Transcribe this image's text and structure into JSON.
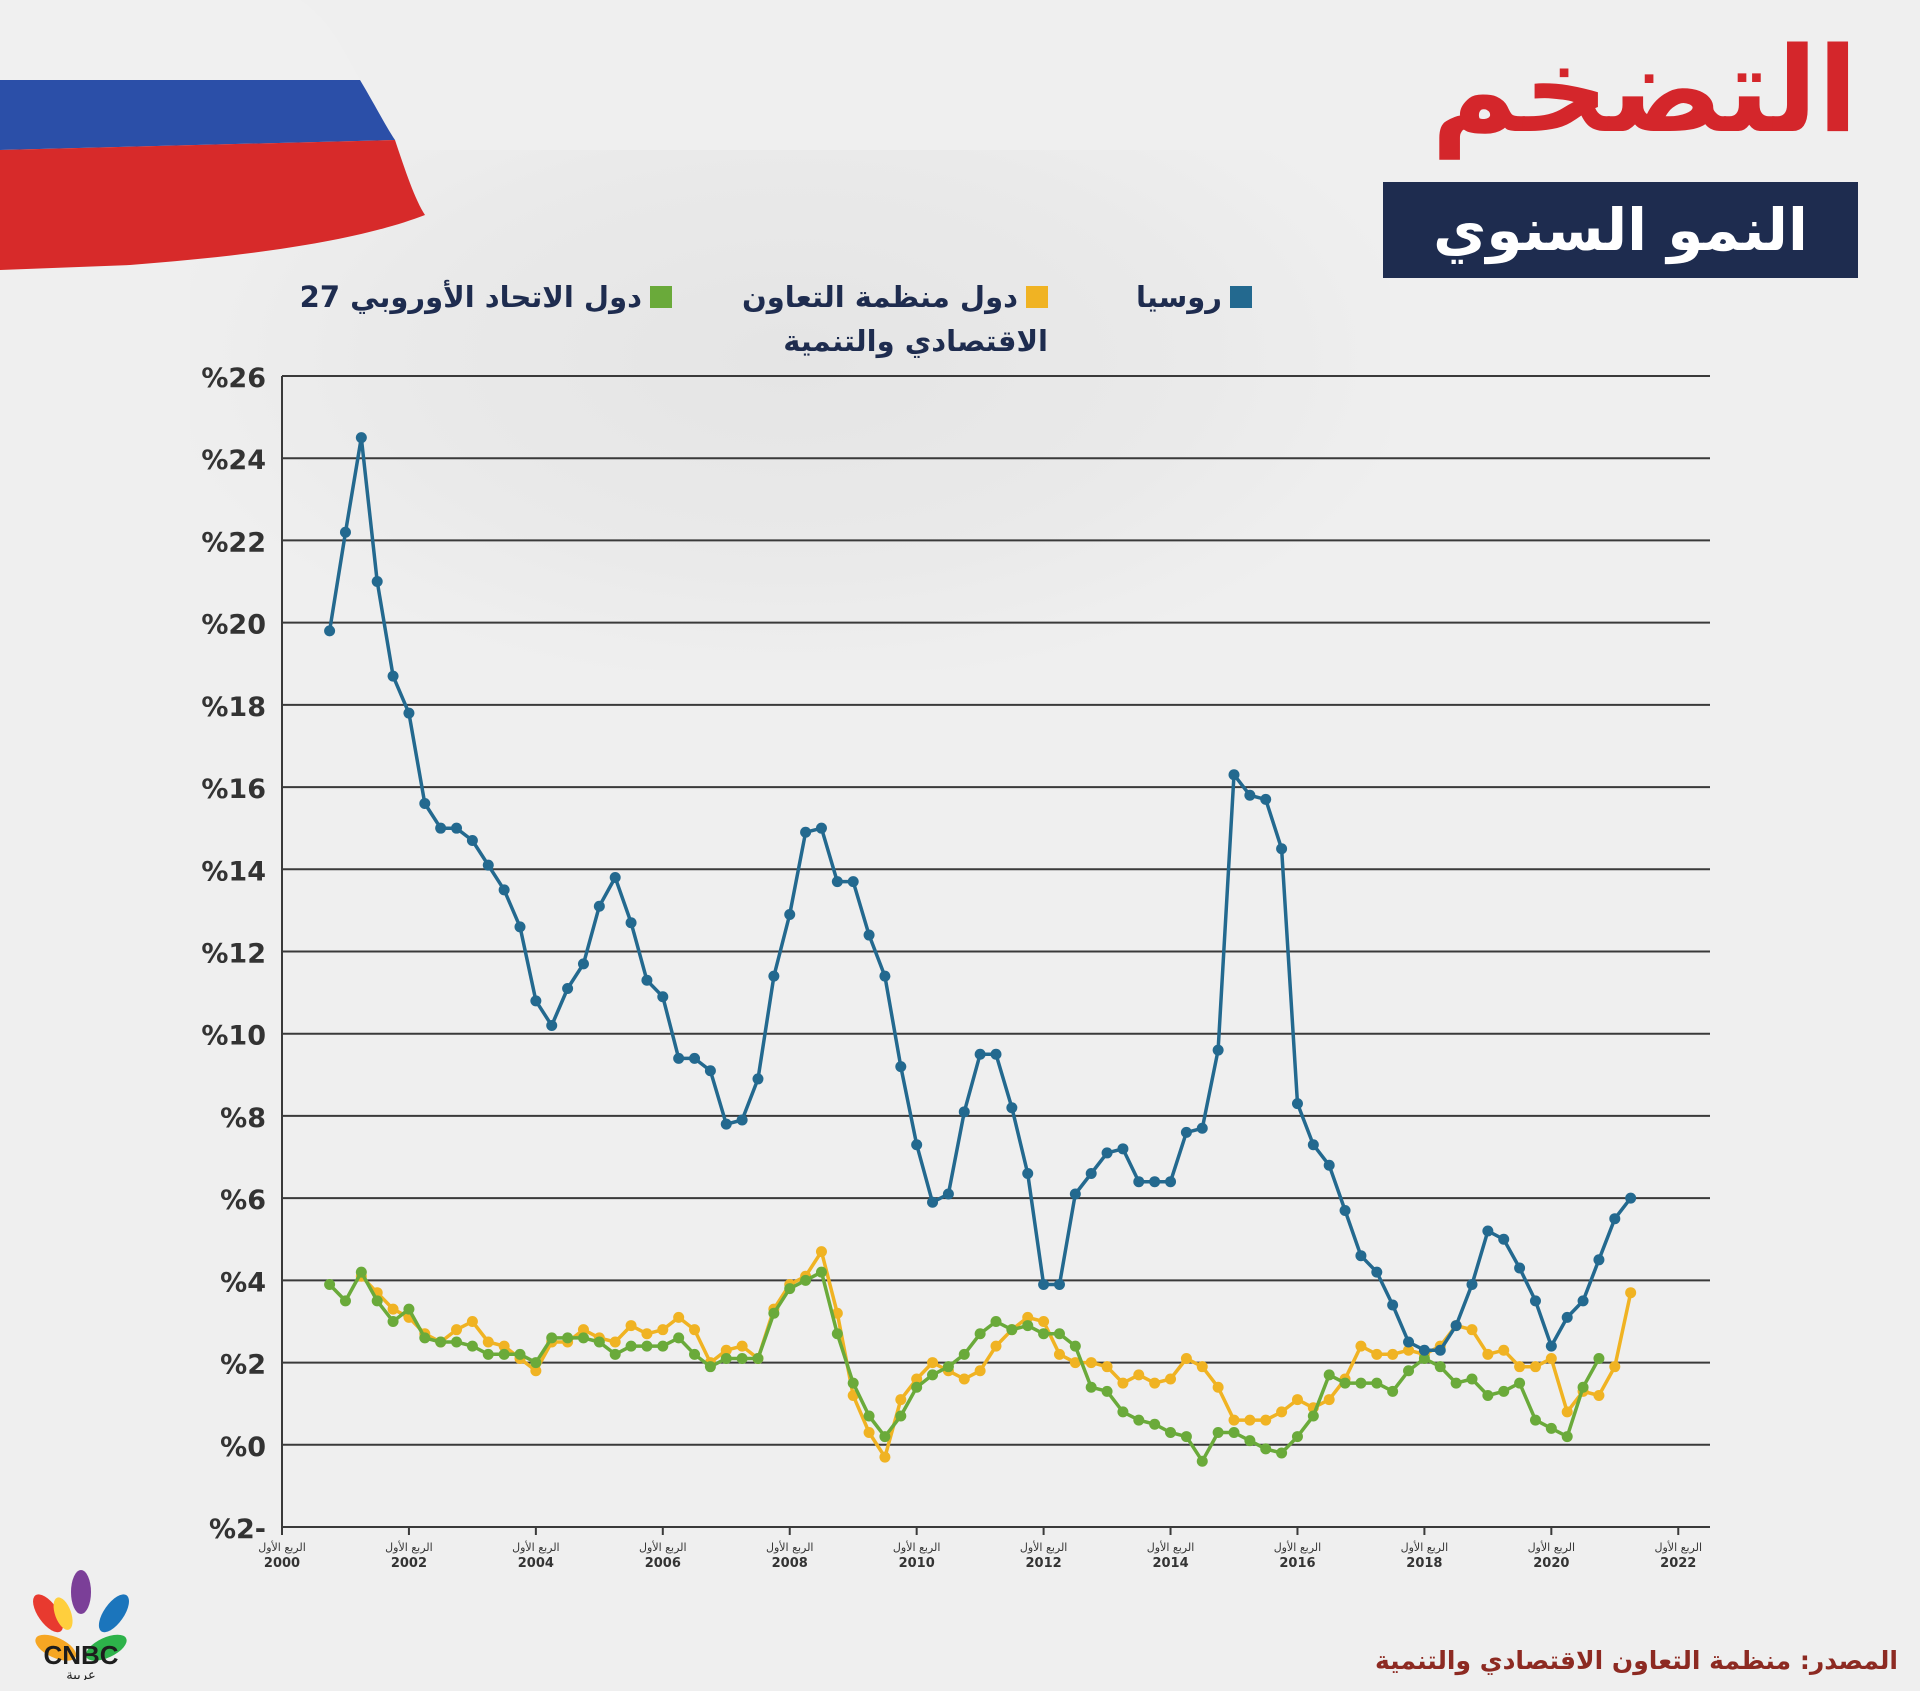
{
  "title": "التضخم",
  "subtitle": "النمو السنوي",
  "legend": [
    {
      "label": "روسيا",
      "color": "#23698f"
    },
    {
      "label": "دول منظمة التعاون الاقتصادي والتنمية",
      "color": "#f0b323"
    },
    {
      "label": "دول الاتحاد الأوروبي 27",
      "color": "#6aaa3a"
    }
  ],
  "source": "المصدر: منظمة التعاون الاقتصادي والتنمية",
  "logo": {
    "text": "CNBC",
    "subtext": "عربية"
  },
  "chart_data": {
    "type": "line",
    "ylim": [
      -2,
      26
    ],
    "yticks": [
      26,
      24,
      22,
      20,
      18,
      16,
      14,
      12,
      10,
      8,
      6,
      4,
      2,
      0,
      -2
    ],
    "ytick_labels": [
      "%26",
      "%24",
      "%22",
      "%20",
      "%18",
      "%16",
      "%14",
      "%12",
      "%10",
      "%8",
      "%6",
      "%4",
      "%2",
      "%0",
      "%2-"
    ],
    "xlim": [
      2000,
      2022.5
    ],
    "xtick_values": [
      2000,
      2002,
      2004,
      2006,
      2008,
      2010,
      2012,
      2014,
      2016,
      2018,
      2020,
      2022
    ],
    "xtick_labels": [
      {
        "quarter": "الربع الأول",
        "year": "2000"
      },
      {
        "quarter": "الربع الأول",
        "year": "2002"
      },
      {
        "quarter": "الربع الأول",
        "year": "2004"
      },
      {
        "quarter": "الربع الأول",
        "year": "2006"
      },
      {
        "quarter": "الربع الأول",
        "year": "2008"
      },
      {
        "quarter": "الربع الأول",
        "year": "2010"
      },
      {
        "quarter": "الربع الأول",
        "year": "2012"
      },
      {
        "quarter": "الربع الأول",
        "year": "2014"
      },
      {
        "quarter": "الربع الأول",
        "year": "2016"
      },
      {
        "quarter": "الربع الأول",
        "year": "2018"
      },
      {
        "quarter": "الربع الأول",
        "year": "2020"
      },
      {
        "quarter": "الربع الأول",
        "year": "2022"
      }
    ],
    "grid": true,
    "x": [
      2000.75,
      2001,
      2001.25,
      2001.5,
      2001.75,
      2002,
      2002.25,
      2002.5,
      2002.75,
      2003,
      2003.25,
      2003.5,
      2003.75,
      2004,
      2004.25,
      2004.5,
      2004.75,
      2005,
      2005.25,
      2005.5,
      2005.75,
      2006,
      2006.25,
      2006.5,
      2006.75,
      2007,
      2007.25,
      2007.5,
      2007.75,
      2008,
      2008.25,
      2008.5,
      2008.75,
      2009,
      2009.25,
      2009.5,
      2009.75,
      2010,
      2010.25,
      2010.5,
      2010.75,
      2011,
      2011.25,
      2011.5,
      2011.75,
      2012,
      2012.25,
      2012.5,
      2012.75,
      2013,
      2013.25,
      2013.5,
      2013.75,
      2014,
      2014.25,
      2014.5,
      2014.75,
      2015,
      2015.25,
      2015.5,
      2015.75,
      2016,
      2016.25,
      2016.5,
      2016.75,
      2017,
      2017.25,
      2017.5,
      2017.75,
      2018,
      2018.25,
      2018.5,
      2018.75,
      2019,
      2019.25,
      2019.5,
      2019.75,
      2020,
      2020.25,
      2020.5,
      2020.75,
      2021,
      2021.25
    ],
    "series": [
      {
        "name": "روسيا",
        "color": "#23698f",
        "values": [
          19.8,
          22.2,
          24.5,
          21.0,
          18.7,
          17.8,
          15.6,
          15.0,
          15.0,
          14.7,
          14.1,
          13.5,
          12.6,
          10.8,
          10.2,
          11.1,
          11.7,
          13.1,
          13.8,
          12.7,
          11.3,
          10.9,
          9.4,
          9.4,
          9.1,
          7.8,
          7.9,
          8.9,
          11.4,
          12.9,
          14.9,
          15.0,
          13.7,
          13.7,
          12.4,
          11.4,
          9.2,
          7.3,
          5.9,
          6.1,
          8.1,
          9.5,
          9.5,
          8.2,
          6.6,
          3.9,
          3.9,
          6.1,
          6.6,
          7.1,
          7.2,
          6.4,
          6.4,
          6.4,
          7.6,
          7.7,
          9.6,
          16.3,
          15.8,
          15.7,
          14.5,
          8.3,
          7.3,
          6.8,
          5.7,
          4.6,
          4.2,
          3.4,
          2.5,
          2.3,
          2.3,
          2.9,
          3.9,
          5.2,
          5.0,
          4.3,
          3.5,
          2.4,
          3.1,
          3.5,
          4.5,
          5.5,
          6.0
        ]
      },
      {
        "name": "دول منظمة التعاون الاقتصادي والتنمية",
        "color": "#f0b323",
        "values": [
          null,
          null,
          4.1,
          3.7,
          3.3,
          3.1,
          2.7,
          2.5,
          2.8,
          3.0,
          2.5,
          2.4,
          2.1,
          1.8,
          2.5,
          2.5,
          2.8,
          2.6,
          2.5,
          2.9,
          2.7,
          2.8,
          3.1,
          2.8,
          2.0,
          2.3,
          2.4,
          2.1,
          3.3,
          3.9,
          4.1,
          4.7,
          3.2,
          1.2,
          0.3,
          -0.3,
          1.1,
          1.6,
          2.0,
          1.8,
          1.6,
          1.8,
          2.4,
          2.8,
          3.1,
          3.0,
          2.2,
          2.0,
          2.0,
          1.9,
          1.5,
          1.7,
          1.5,
          1.6,
          2.1,
          1.9,
          1.4,
          0.6,
          0.6,
          0.6,
          0.8,
          1.1,
          0.9,
          1.1,
          1.6,
          2.4,
          2.2,
          2.2,
          2.3,
          2.2,
          2.4,
          2.9,
          2.8,
          2.2,
          2.3,
          1.9,
          1.9,
          2.1,
          0.8,
          1.3,
          1.2,
          1.9,
          3.7
        ]
      },
      {
        "name": "دول الاتحاد الأوروبي 27",
        "color": "#6aaa3a",
        "values": [
          3.9,
          3.5,
          4.2,
          3.5,
          3.0,
          3.3,
          2.6,
          2.5,
          2.5,
          2.4,
          2.2,
          2.2,
          2.2,
          2.0,
          2.6,
          2.6,
          2.6,
          2.5,
          2.2,
          2.4,
          2.4,
          2.4,
          2.6,
          2.2,
          1.9,
          2.1,
          2.1,
          2.1,
          3.2,
          3.8,
          4.0,
          4.2,
          2.7,
          1.5,
          0.7,
          0.2,
          0.7,
          1.4,
          1.7,
          1.9,
          2.2,
          2.7,
          3.0,
          2.8,
          2.9,
          2.7,
          2.7,
          2.4,
          1.4,
          1.3,
          0.8,
          0.6,
          0.5,
          0.3,
          0.2,
          -0.4,
          0.3,
          0.3,
          0.1,
          -0.1,
          -0.2,
          0.2,
          0.7,
          1.7,
          1.5,
          1.5,
          1.5,
          1.3,
          1.8,
          2.1,
          1.9,
          1.5,
          1.6,
          1.2,
          1.3,
          1.5,
          0.6,
          0.4,
          0.2,
          1.4,
          2.1,
          null,
          null
        ]
      }
    ]
  }
}
